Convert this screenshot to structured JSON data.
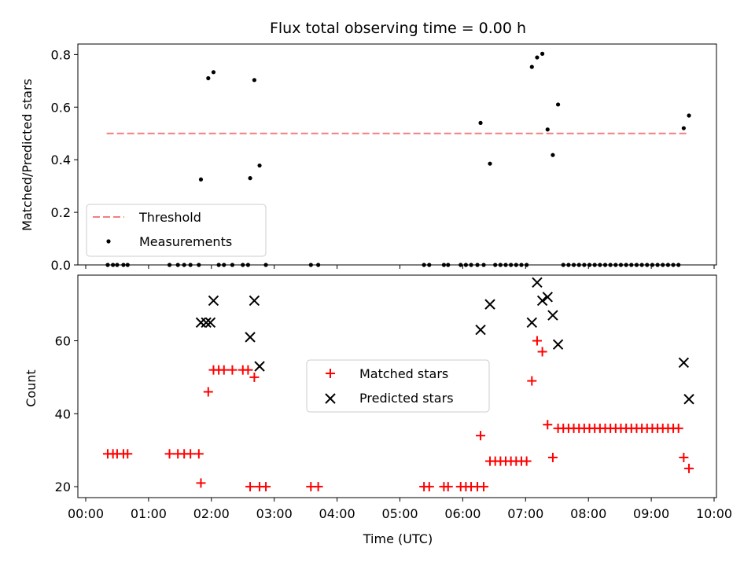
{
  "chart_data": [
    {
      "type": "scatter",
      "title": "Flux total observing time = 0.00 h",
      "xlabel": "",
      "ylabel": "Matched/Predicted stars",
      "xlim": [
        "00:00",
        "10:00"
      ],
      "ylim": [
        0,
        0.84
      ],
      "yticks": [
        "0.0",
        "0.2",
        "0.4",
        "0.6",
        "0.8"
      ],
      "legend_position": "lower-left",
      "threshold": {
        "name": "Threshold",
        "value": 0.5,
        "x_range": [
          "00:20",
          "09:35"
        ],
        "color": "#f08080"
      },
      "measurements": {
        "name": "Measurements",
        "color": "#000000",
        "points": [
          [
            "00:21",
            0
          ],
          [
            "00:26",
            0
          ],
          [
            "00:30",
            0
          ],
          [
            "00:36",
            0
          ],
          [
            "00:40",
            0
          ],
          [
            "01:20",
            0
          ],
          [
            "01:28",
            0
          ],
          [
            "01:34",
            0
          ],
          [
            "01:40",
            0
          ],
          [
            "01:48",
            0
          ],
          [
            "01:50",
            0.325
          ],
          [
            "01:57",
            0.71
          ],
          [
            "02:02",
            0.733
          ],
          [
            "02:07",
            0
          ],
          [
            "02:12",
            0
          ],
          [
            "02:20",
            0
          ],
          [
            "02:30",
            0
          ],
          [
            "02:35",
            0
          ],
          [
            "02:37",
            0.33
          ],
          [
            "02:41",
            0.703
          ],
          [
            "02:46",
            0.378
          ],
          [
            "02:52",
            0
          ],
          [
            "03:35",
            0
          ],
          [
            "03:42",
            0
          ],
          [
            "05:23",
            0
          ],
          [
            "05:28",
            0
          ],
          [
            "05:42",
            0
          ],
          [
            "05:46",
            0
          ],
          [
            "05:58",
            0
          ],
          [
            "06:03",
            0
          ],
          [
            "06:08",
            0
          ],
          [
            "06:14",
            0
          ],
          [
            "06:17",
            0.54
          ],
          [
            "06:20",
            0
          ],
          [
            "06:26",
            0.385
          ],
          [
            "06:31",
            0
          ],
          [
            "06:36",
            0
          ],
          [
            "06:41",
            0
          ],
          [
            "06:46",
            0
          ],
          [
            "06:51",
            0
          ],
          [
            "06:56",
            0
          ],
          [
            "07:01",
            0
          ],
          [
            "07:06",
            0.753
          ],
          [
            "07:11",
            0.789
          ],
          [
            "07:16",
            0.803
          ],
          [
            "07:21",
            0.515
          ],
          [
            "07:26",
            0.418
          ],
          [
            "07:31",
            0.61
          ],
          [
            "07:36",
            0
          ],
          [
            "07:41",
            0
          ],
          [
            "07:46",
            0
          ],
          [
            "07:51",
            0
          ],
          [
            "07:56",
            0
          ],
          [
            "08:01",
            0
          ],
          [
            "08:06",
            0
          ],
          [
            "08:11",
            0
          ],
          [
            "08:16",
            0
          ],
          [
            "08:21",
            0
          ],
          [
            "08:26",
            0
          ],
          [
            "08:31",
            0
          ],
          [
            "08:36",
            0
          ],
          [
            "08:41",
            0
          ],
          [
            "08:46",
            0
          ],
          [
            "08:51",
            0
          ],
          [
            "08:56",
            0
          ],
          [
            "09:01",
            0
          ],
          [
            "09:06",
            0
          ],
          [
            "09:11",
            0
          ],
          [
            "09:16",
            0
          ],
          [
            "09:21",
            0
          ],
          [
            "09:26",
            0
          ],
          [
            "09:31",
            0.52
          ],
          [
            "09:36",
            0.568
          ]
        ]
      }
    },
    {
      "type": "scatter",
      "title": "",
      "xlabel": "Time (UTC)",
      "ylabel": "Count",
      "xlim": [
        "00:00",
        "10:00"
      ],
      "ylim": [
        17,
        78
      ],
      "yticks": [
        "20",
        "40",
        "60"
      ],
      "xticks": [
        "00:00",
        "01:00",
        "02:00",
        "03:00",
        "04:00",
        "05:00",
        "06:00",
        "07:00",
        "08:00",
        "09:00",
        "10:00"
      ],
      "legend_position": "center",
      "series": [
        {
          "name": "Matched stars",
          "marker": "plus",
          "color": "#ff0000",
          "points": [
            [
              "00:21",
              29
            ],
            [
              "00:26",
              29
            ],
            [
              "00:30",
              29
            ],
            [
              "00:36",
              29
            ],
            [
              "00:40",
              29
            ],
            [
              "01:20",
              29
            ],
            [
              "01:28",
              29
            ],
            [
              "01:34",
              29
            ],
            [
              "01:40",
              29
            ],
            [
              "01:48",
              29
            ],
            [
              "01:50",
              21
            ],
            [
              "01:57",
              46
            ],
            [
              "02:02",
              52
            ],
            [
              "02:07",
              52
            ],
            [
              "02:12",
              52
            ],
            [
              "02:20",
              52
            ],
            [
              "02:30",
              52
            ],
            [
              "02:35",
              52
            ],
            [
              "02:37",
              20
            ],
            [
              "02:41",
              50
            ],
            [
              "02:46",
              20
            ],
            [
              "02:52",
              20
            ],
            [
              "03:35",
              20
            ],
            [
              "03:42",
              20
            ],
            [
              "05:23",
              20
            ],
            [
              "05:28",
              20
            ],
            [
              "05:42",
              20
            ],
            [
              "05:46",
              20
            ],
            [
              "05:58",
              20
            ],
            [
              "06:03",
              20
            ],
            [
              "06:08",
              20
            ],
            [
              "06:14",
              20
            ],
            [
              "06:17",
              34
            ],
            [
              "06:20",
              20
            ],
            [
              "06:26",
              27
            ],
            [
              "06:31",
              27
            ],
            [
              "06:36",
              27
            ],
            [
              "06:41",
              27
            ],
            [
              "06:46",
              27
            ],
            [
              "06:51",
              27
            ],
            [
              "06:56",
              27
            ],
            [
              "07:01",
              27
            ],
            [
              "07:06",
              49
            ],
            [
              "07:11",
              60
            ],
            [
              "07:16",
              57
            ],
            [
              "07:21",
              37
            ],
            [
              "07:26",
              28
            ],
            [
              "07:31",
              36
            ],
            [
              "07:36",
              36
            ],
            [
              "07:41",
              36
            ],
            [
              "07:46",
              36
            ],
            [
              "07:51",
              36
            ],
            [
              "07:56",
              36
            ],
            [
              "08:01",
              36
            ],
            [
              "08:06",
              36
            ],
            [
              "08:11",
              36
            ],
            [
              "08:16",
              36
            ],
            [
              "08:21",
              36
            ],
            [
              "08:26",
              36
            ],
            [
              "08:31",
              36
            ],
            [
              "08:36",
              36
            ],
            [
              "08:41",
              36
            ],
            [
              "08:46",
              36
            ],
            [
              "08:51",
              36
            ],
            [
              "08:56",
              36
            ],
            [
              "09:01",
              36
            ],
            [
              "09:06",
              36
            ],
            [
              "09:11",
              36
            ],
            [
              "09:16",
              36
            ],
            [
              "09:21",
              36
            ],
            [
              "09:26",
              36
            ],
            [
              "09:31",
              28
            ],
            [
              "09:36",
              25
            ]
          ]
        },
        {
          "name": "Predicted stars",
          "marker": "x",
          "color": "#000000",
          "points": [
            [
              "01:50",
              65
            ],
            [
              "01:55",
              65
            ],
            [
              "01:59",
              65
            ],
            [
              "02:02",
              71
            ],
            [
              "02:37",
              61
            ],
            [
              "02:41",
              71
            ],
            [
              "02:46",
              53
            ],
            [
              "06:17",
              63
            ],
            [
              "06:26",
              70
            ],
            [
              "07:06",
              65
            ],
            [
              "07:11",
              76
            ],
            [
              "07:16",
              71
            ],
            [
              "07:21",
              72
            ],
            [
              "07:26",
              67
            ],
            [
              "07:31",
              59
            ],
            [
              "09:31",
              54
            ],
            [
              "09:36",
              44
            ]
          ]
        }
      ]
    }
  ]
}
